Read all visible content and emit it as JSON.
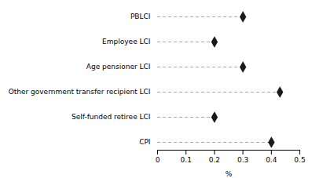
{
  "chart_data": {
    "type": "dot",
    "orientation": "horizontal",
    "categories": [
      "PBLCI",
      "Employee LCI",
      "Age pensioner LCI",
      "Other government transfer recipient LCI",
      "Self-funded retiree LCI",
      "CPI"
    ],
    "values": [
      0.3,
      0.2,
      0.3,
      0.43,
      0.2,
      0.4
    ],
    "color": "#1a1a1a",
    "marker": "diamond",
    "line_style": "dashed",
    "xlabel": "%",
    "xlim": [
      0,
      0.5
    ],
    "xticks": [
      0,
      0.1,
      0.2,
      0.3,
      0.4,
      0.5
    ],
    "grid": false
  }
}
